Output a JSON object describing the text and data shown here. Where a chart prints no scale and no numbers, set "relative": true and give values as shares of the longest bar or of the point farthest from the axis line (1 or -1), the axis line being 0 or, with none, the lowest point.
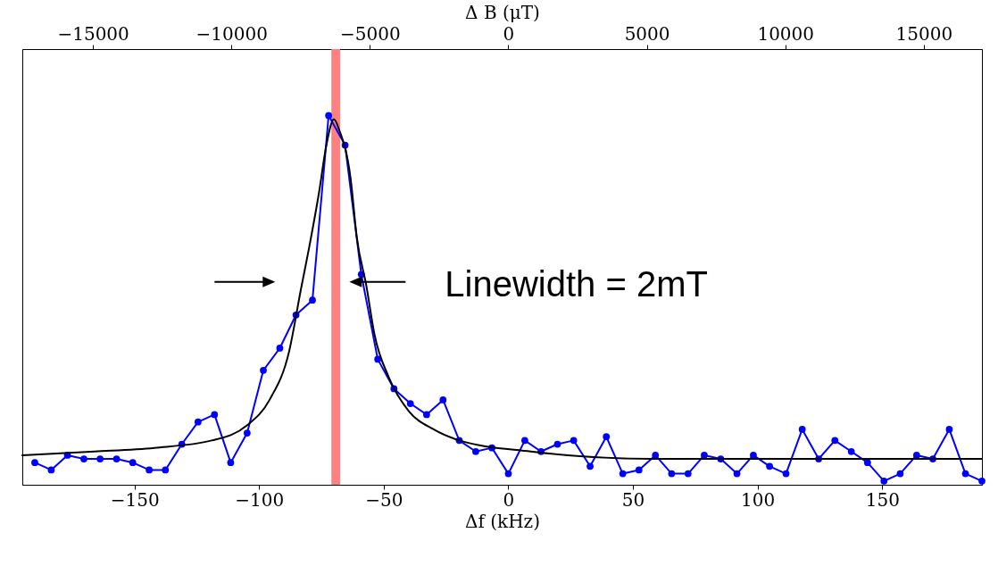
{
  "chart_data": {
    "type": "line",
    "relative": true,
    "xlabel": "Δf (kHz)",
    "x2label": "Δ B (μT)",
    "xlim": [
      -195,
      190
    ],
    "xticks": [
      -150,
      -100,
      -50,
      0,
      50,
      100,
      150
    ],
    "x2lim": [
      -17550,
      17100
    ],
    "x2ticks": [
      -15000,
      -10000,
      -5000,
      0,
      5000,
      10000,
      15000
    ],
    "marker": "circle",
    "line_style": "solid",
    "grid": false,
    "series": [
      {
        "color": "#0000ff",
        "x": [
          -190.0,
          -183.4,
          -176.9,
          -170.3,
          -163.8,
          -157.2,
          -150.7,
          -144.1,
          -137.6,
          -131.0,
          -124.5,
          -117.9,
          -111.4,
          -104.8,
          -98.3,
          -91.7,
          -85.2,
          -78.6,
          -72.1,
          -65.5,
          -59.0,
          -52.4,
          -45.9,
          -39.3,
          -32.8,
          -26.2,
          -19.7,
          -13.1,
          -6.6,
          0,
          6.6,
          13.1,
          19.7,
          26.2,
          32.8,
          39.3,
          45.9,
          52.4,
          59.0,
          65.5,
          72.1,
          78.6,
          85.2,
          91.7,
          98.3,
          104.8,
          111.4,
          117.9,
          124.5,
          131.0,
          137.6,
          144.1,
          150.7,
          157.2,
          163.8,
          170.3,
          176.9,
          183.4,
          190.0
        ],
        "values": [
          0.06,
          0.04,
          0.08,
          0.07,
          0.07,
          0.07,
          0.06,
          0.04,
          0.04,
          0.11,
          0.17,
          0.19,
          0.06,
          0.14,
          0.31,
          0.37,
          0.46,
          0.5,
          1.0,
          0.92,
          0.57,
          0.34,
          0.26,
          0.22,
          0.19,
          0.23,
          0.12,
          0.09,
          0.1,
          0.03,
          0.12,
          0.09,
          0.11,
          0.12,
          0.05,
          0.13,
          0.03,
          0.04,
          0.08,
          0.03,
          0.03,
          0.08,
          0.07,
          0.03,
          0.08,
          0.05,
          0.03,
          0.15,
          0.07,
          0.12,
          0.09,
          0.06,
          0.01,
          0.03,
          0.08,
          0.07,
          0.15,
          0.03,
          0.01
        ]
      },
      {
        "color": "#000000",
        "marker": "none",
        "x": [
          -195,
          -166,
          -142,
          -119,
          -105,
          -95.8,
          -88,
          -83.2,
          -80,
          -76,
          -73,
          -70,
          -67.8,
          -63.3,
          -60.8,
          -57,
          -53.8,
          -47.9,
          -40,
          -30,
          -19.6,
          9,
          58,
          120,
          190
        ],
        "values": [
          0.08,
          0.09,
          0.1,
          0.12,
          0.16,
          0.23,
          0.36,
          0.53,
          0.64,
          0.79,
          0.92,
          0.99,
          0.96,
          0.83,
          0.67,
          0.54,
          0.41,
          0.29,
          0.2,
          0.15,
          0.12,
          0.09,
          0.07,
          0.07,
          0.07
        ]
      }
    ],
    "bands": [
      {
        "axis": "x",
        "from": -71,
        "to": -67.5,
        "color": "#ff8080"
      }
    ],
    "annotations": [
      {
        "text": "Linewidth = 2mT",
        "x": -57,
        "y": 0.54
      }
    ]
  }
}
